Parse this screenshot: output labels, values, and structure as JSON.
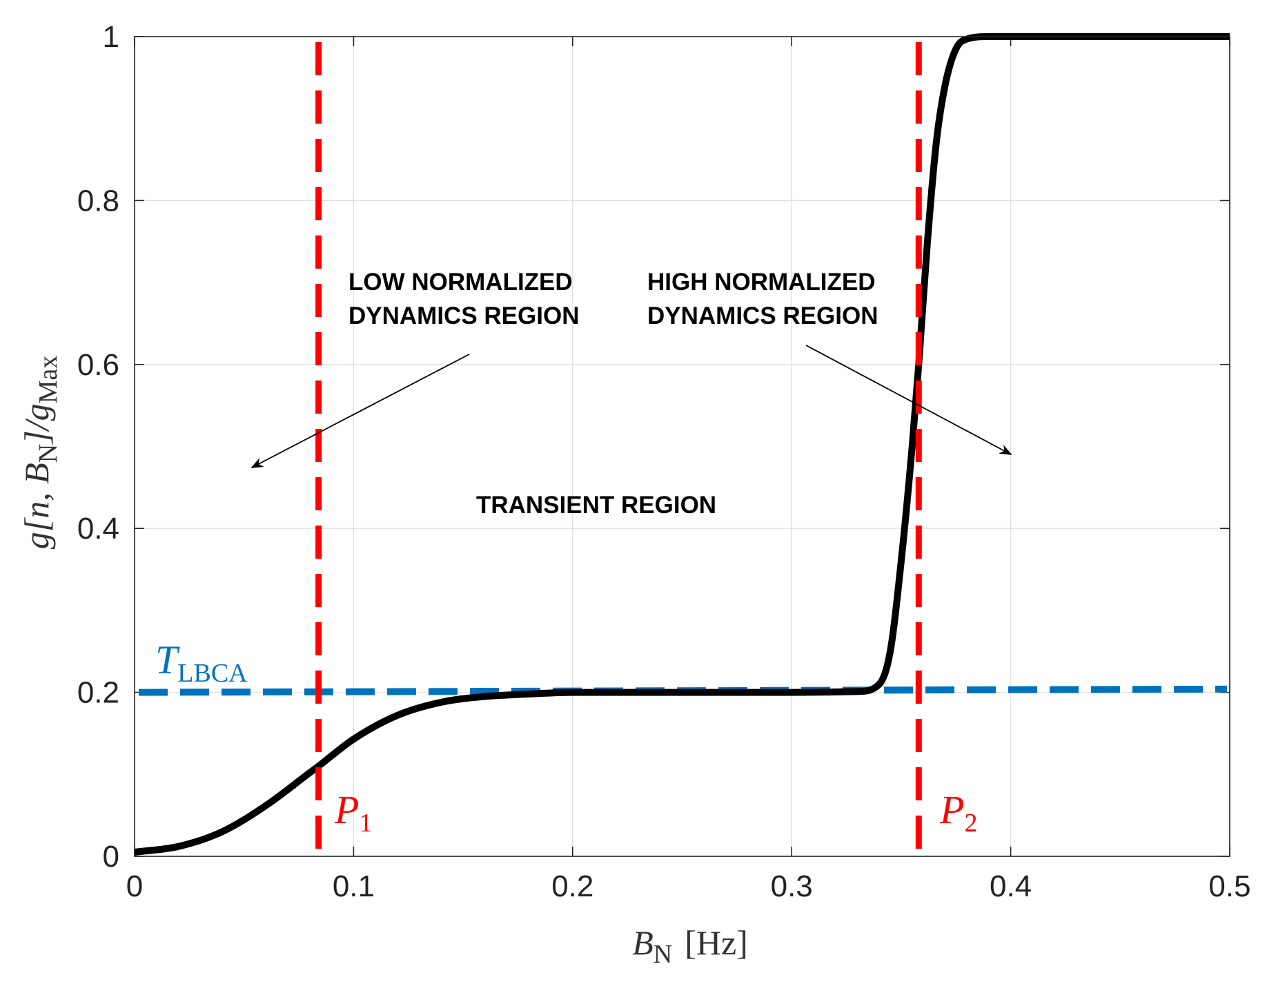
{
  "chart_data": {
    "type": "line",
    "title": "",
    "xlabel": {
      "main": "B",
      "sub": "N",
      "unit": "[Hz]"
    },
    "ylabel": {
      "g": "g",
      "args_open": "[n, B",
      "args_sub": "N",
      "args_close": "]/g",
      "max_sub": "Max"
    },
    "xlim": [
      0,
      0.5
    ],
    "ylim": [
      0,
      1
    ],
    "x_ticks": [
      0,
      0.1,
      0.2,
      0.3,
      0.4,
      0.5
    ],
    "x_tick_labels": [
      "0",
      "0.1",
      "0.2",
      "0.3",
      "0.4",
      "0.5"
    ],
    "y_ticks": [
      0,
      0.2,
      0.4,
      0.6,
      0.8,
      1
    ],
    "y_tick_labels": [
      "0",
      "0.2",
      "0.4",
      "0.6",
      "0.8",
      "1"
    ],
    "grid": true,
    "series": [
      {
        "name": "g[n, B_N]/g_Max",
        "color": "#000000",
        "x": [
          0,
          0.02,
          0.04,
          0.06,
          0.08,
          0.084,
          0.1,
          0.12,
          0.14,
          0.16,
          0.18,
          0.2,
          0.25,
          0.3,
          0.33,
          0.34,
          0.345,
          0.35,
          0.355,
          0.358,
          0.362,
          0.366,
          0.37,
          0.375,
          0.38,
          0.39,
          0.4,
          0.45,
          0.5
        ],
        "y": [
          0.005,
          0.012,
          0.03,
          0.062,
          0.102,
          0.11,
          0.143,
          0.172,
          0.188,
          0.195,
          0.198,
          0.2,
          0.2,
          0.2,
          0.201,
          0.21,
          0.25,
          0.36,
          0.5,
          0.6,
          0.75,
          0.87,
          0.94,
          0.985,
          0.997,
          1.0,
          1.0,
          1.0,
          1.0
        ]
      },
      {
        "name": "T_LBCA",
        "color": "#0072BD",
        "style": "dashed",
        "x": [
          0,
          0.5
        ],
        "y": [
          0.2,
          0.204
        ]
      }
    ],
    "vertical_markers": [
      {
        "name": "P1",
        "x": 0.084,
        "color": "#FF0000"
      },
      {
        "name": "P2",
        "x": 0.358,
        "color": "#FF0000"
      }
    ],
    "threshold_label": {
      "main": "T",
      "sub": "LBCA",
      "color": "#0072BD"
    },
    "marker_labels": [
      {
        "main": "P",
        "sub": "1"
      },
      {
        "main": "P",
        "sub": "2"
      }
    ],
    "annotations": {
      "low_line1": "LOW NORMALIZED",
      "low_line2": "DYNAMICS REGION",
      "high_line1": "HIGH NORMALIZED",
      "high_line2": "DYNAMICS REGION",
      "transient": "TRANSIENT REGION"
    }
  }
}
